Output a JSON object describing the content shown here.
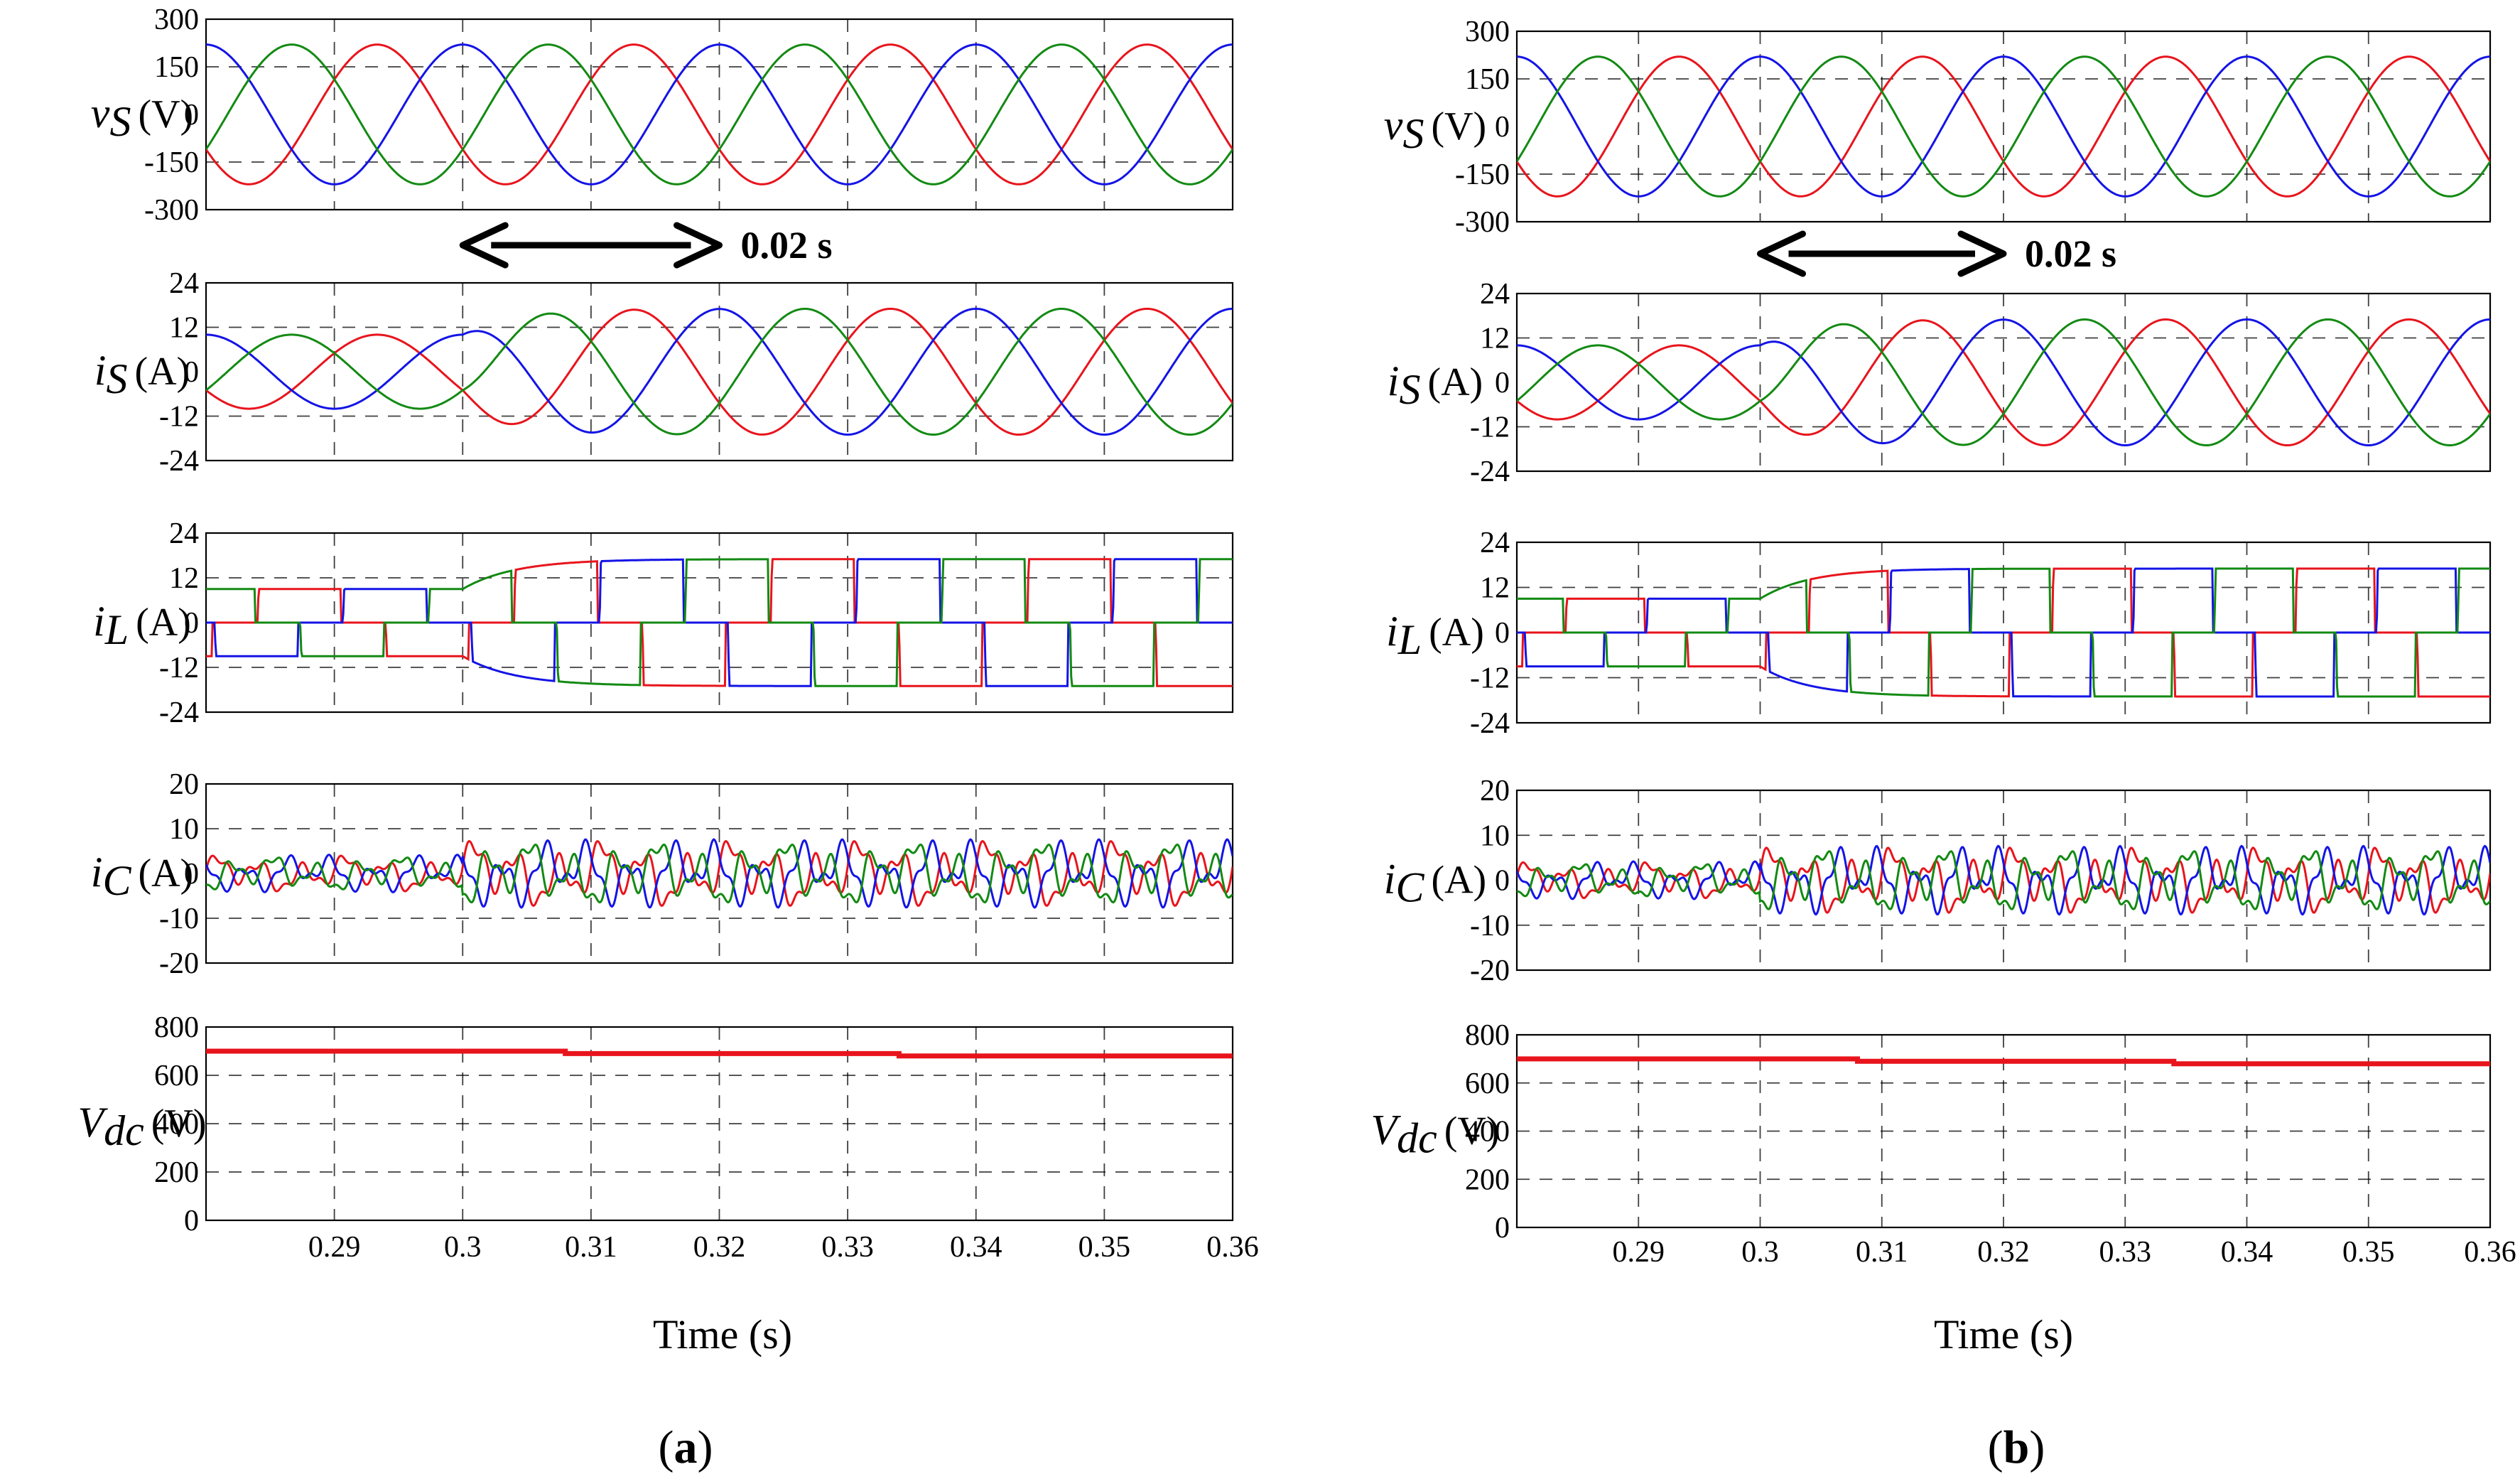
{
  "figure": {
    "time_axis_title": "Time (s)",
    "annotation_label": "0.02 s",
    "caption_a_open": "(",
    "caption_a_letter": "a",
    "caption_a_close": ")",
    "caption_b_open": "(",
    "caption_b_letter": "b",
    "caption_b_close": ")"
  },
  "colors": {
    "phase_a": "#e8141c",
    "phase_b": "#1414e6",
    "phase_c": "#138a13",
    "vdc": "#e8141c"
  },
  "chart_data": [
    {
      "id": "a",
      "type": "line",
      "x_range": [
        0.28,
        0.36
      ],
      "x_ticks": [
        0.29,
        0.3,
        0.31,
        0.32,
        0.33,
        0.34,
        0.35,
        0.36
      ],
      "x_tick_labels": [
        "0.29",
        "0.3",
        "0.31",
        "0.32",
        "0.33",
        "0.34",
        "0.35",
        "0.36"
      ],
      "xlabel": "Time (s)",
      "annotation": {
        "text": "0.02 s",
        "from": 0.3,
        "to": 0.32
      },
      "panels": [
        {
          "key": "vs",
          "label_main": "v",
          "label_sub": "S",
          "label_unit": "(V)",
          "ylim": [
            -300,
            300
          ],
          "y_ticks": [
            300,
            150,
            0,
            -150,
            -300
          ],
          "y_tick_labels": [
            "300",
            "150",
            "0",
            "-150",
            "-300"
          ],
          "grid_y": [
            150,
            -150
          ],
          "series": [
            {
              "name": "phase a",
              "amplitude": 220,
              "phase_deg": -150
            },
            {
              "name": "phase b",
              "amplitude": 220,
              "phase_deg": 90
            },
            {
              "name": "phase c",
              "amplitude": 220,
              "phase_deg": -30
            }
          ]
        },
        {
          "key": "is",
          "label_main": "i",
          "label_sub": "S",
          "label_unit": "(A)",
          "ylim": [
            -24,
            24
          ],
          "y_ticks": [
            24,
            12,
            0,
            -12,
            -24
          ],
          "y_tick_labels": [
            "24",
            "12",
            "0",
            "-12",
            "-24"
          ],
          "grid_y": [
            12,
            -12
          ],
          "series": [
            {
              "name": "phase a",
              "amplitude_before": 10,
              "amplitude_after": 17,
              "step_time": 0.3,
              "phase_deg": -150
            },
            {
              "name": "phase b",
              "amplitude_before": 10,
              "amplitude_after": 17,
              "step_time": 0.3,
              "phase_deg": 90
            },
            {
              "name": "phase c",
              "amplitude_before": 10,
              "amplitude_after": 17,
              "step_time": 0.3,
              "phase_deg": -30
            }
          ]
        },
        {
          "key": "il",
          "label_main": "i",
          "label_sub": "L",
          "label_unit": "(A)",
          "ylim": [
            -24,
            24
          ],
          "y_ticks": [
            24,
            12,
            0,
            -12,
            -24
          ],
          "y_tick_labels": [
            "24",
            "12",
            "0",
            "-12",
            "-24"
          ],
          "grid_y": [
            12,
            -12
          ],
          "series": [
            {
              "name": "phase a",
              "level_before": 9,
              "level_after": 17,
              "step_time": 0.3
            },
            {
              "name": "phase b",
              "level_before": 9,
              "level_after": 17,
              "step_time": 0.3
            },
            {
              "name": "phase c",
              "level_before": 9,
              "level_after": 17,
              "step_time": 0.3
            }
          ]
        },
        {
          "key": "ic",
          "label_main": "i",
          "label_sub": "C",
          "label_unit": "(A)",
          "ylim": [
            -20,
            20
          ],
          "y_ticks": [
            20,
            10,
            0,
            -10,
            -20
          ],
          "y_tick_labels": [
            "20",
            "10",
            "0",
            "-10",
            "-20"
          ],
          "grid_y": [
            10,
            -10
          ],
          "series": [
            {
              "name": "phase a",
              "amplitude": 8
            },
            {
              "name": "phase b",
              "amplitude": 8
            },
            {
              "name": "phase c",
              "amplitude": 8
            }
          ]
        },
        {
          "key": "vdc",
          "label_main": "V",
          "label_sub": "dc",
          "label_unit": "(V)",
          "ylim": [
            0,
            800
          ],
          "y_ticks": [
            800,
            600,
            400,
            200,
            0
          ],
          "y_tick_labels": [
            "800",
            "600",
            "400",
            "200",
            "0"
          ],
          "grid_y": [
            600,
            400,
            200
          ],
          "series": [
            {
              "name": "Vdc",
              "points": [
                [
                  0.28,
                  700
                ],
                [
                  0.308,
                  700
                ],
                [
                  0.308,
                  690
                ],
                [
                  0.334,
                  690
                ],
                [
                  0.334,
                  680
                ],
                [
                  0.36,
                  680
                ]
              ]
            }
          ]
        }
      ]
    },
    {
      "id": "b",
      "type": "line",
      "x_range": [
        0.28,
        0.36
      ],
      "x_ticks": [
        0.29,
        0.3,
        0.31,
        0.32,
        0.33,
        0.34,
        0.35,
        0.36
      ],
      "x_tick_labels": [
        "0.29",
        "0.3",
        "0.31",
        "0.32",
        "0.33",
        "0.34",
        "0.35",
        "0.36"
      ],
      "xlabel": "Time (s)",
      "annotation": {
        "text": "0.02 s",
        "from": 0.3,
        "to": 0.32
      },
      "panels": [
        {
          "key": "vs",
          "label_main": "v",
          "label_sub": "S",
          "label_unit": "(V)",
          "ylim": [
            -300,
            300
          ],
          "y_ticks": [
            300,
            150,
            0,
            -150,
            -300
          ],
          "y_tick_labels": [
            "300",
            "150",
            "0",
            "-150",
            "-300"
          ],
          "grid_y": [
            150,
            -150
          ],
          "series": [
            {
              "name": "phase a",
              "amplitude": 220,
              "phase_deg": -150
            },
            {
              "name": "phase b",
              "amplitude": 220,
              "phase_deg": 90
            },
            {
              "name": "phase c",
              "amplitude": 220,
              "phase_deg": -30
            }
          ]
        },
        {
          "key": "is",
          "label_main": "i",
          "label_sub": "S",
          "label_unit": "(A)",
          "ylim": [
            -24,
            24
          ],
          "y_ticks": [
            24,
            12,
            0,
            -12,
            -24
          ],
          "y_tick_labels": [
            "24",
            "12",
            "0",
            "-12",
            "-24"
          ],
          "grid_y": [
            12,
            -12
          ],
          "series": [
            {
              "name": "phase a",
              "amplitude_before": 10,
              "amplitude_after": 17,
              "step_time": 0.3,
              "phase_deg": -150
            },
            {
              "name": "phase b",
              "amplitude_before": 10,
              "amplitude_after": 17,
              "step_time": 0.3,
              "phase_deg": 90
            },
            {
              "name": "phase c",
              "amplitude_before": 10,
              "amplitude_after": 17,
              "step_time": 0.3,
              "phase_deg": -30
            }
          ]
        },
        {
          "key": "il",
          "label_main": "i",
          "label_sub": "L",
          "label_unit": "(A)",
          "ylim": [
            -24,
            24
          ],
          "y_ticks": [
            24,
            12,
            0,
            -12,
            -24
          ],
          "y_tick_labels": [
            "24",
            "12",
            "0",
            "-12",
            "-24"
          ],
          "grid_y": [
            12,
            -12
          ],
          "series": [
            {
              "name": "phase a",
              "level_before": 9,
              "level_after": 17,
              "step_time": 0.3
            },
            {
              "name": "phase b",
              "level_before": 9,
              "level_after": 17,
              "step_time": 0.3
            },
            {
              "name": "phase c",
              "level_before": 9,
              "level_after": 17,
              "step_time": 0.3
            }
          ]
        },
        {
          "key": "ic",
          "label_main": "i",
          "label_sub": "C",
          "label_unit": "(A)",
          "ylim": [
            -20,
            20
          ],
          "y_ticks": [
            20,
            10,
            0,
            -10,
            -20
          ],
          "y_tick_labels": [
            "20",
            "10",
            "0",
            "-10",
            "-20"
          ],
          "grid_y": [
            10,
            -10
          ],
          "series": [
            {
              "name": "phase a",
              "amplitude": 8
            },
            {
              "name": "phase b",
              "amplitude": 8
            },
            {
              "name": "phase c",
              "amplitude": 8
            }
          ]
        },
        {
          "key": "vdc",
          "label_main": "V",
          "label_sub": "dc",
          "label_unit": "(V)",
          "ylim": [
            0,
            800
          ],
          "y_ticks": [
            800,
            600,
            400,
            200,
            0
          ],
          "y_tick_labels": [
            "800",
            "600",
            "400",
            "200",
            "0"
          ],
          "grid_y": [
            600,
            400,
            200
          ],
          "series": [
            {
              "name": "Vdc",
              "points": [
                [
                  0.28,
                  700
                ],
                [
                  0.308,
                  700
                ],
                [
                  0.308,
                  690
                ],
                [
                  0.334,
                  690
                ],
                [
                  0.334,
                  680
                ],
                [
                  0.36,
                  680
                ]
              ]
            }
          ]
        }
      ]
    }
  ]
}
